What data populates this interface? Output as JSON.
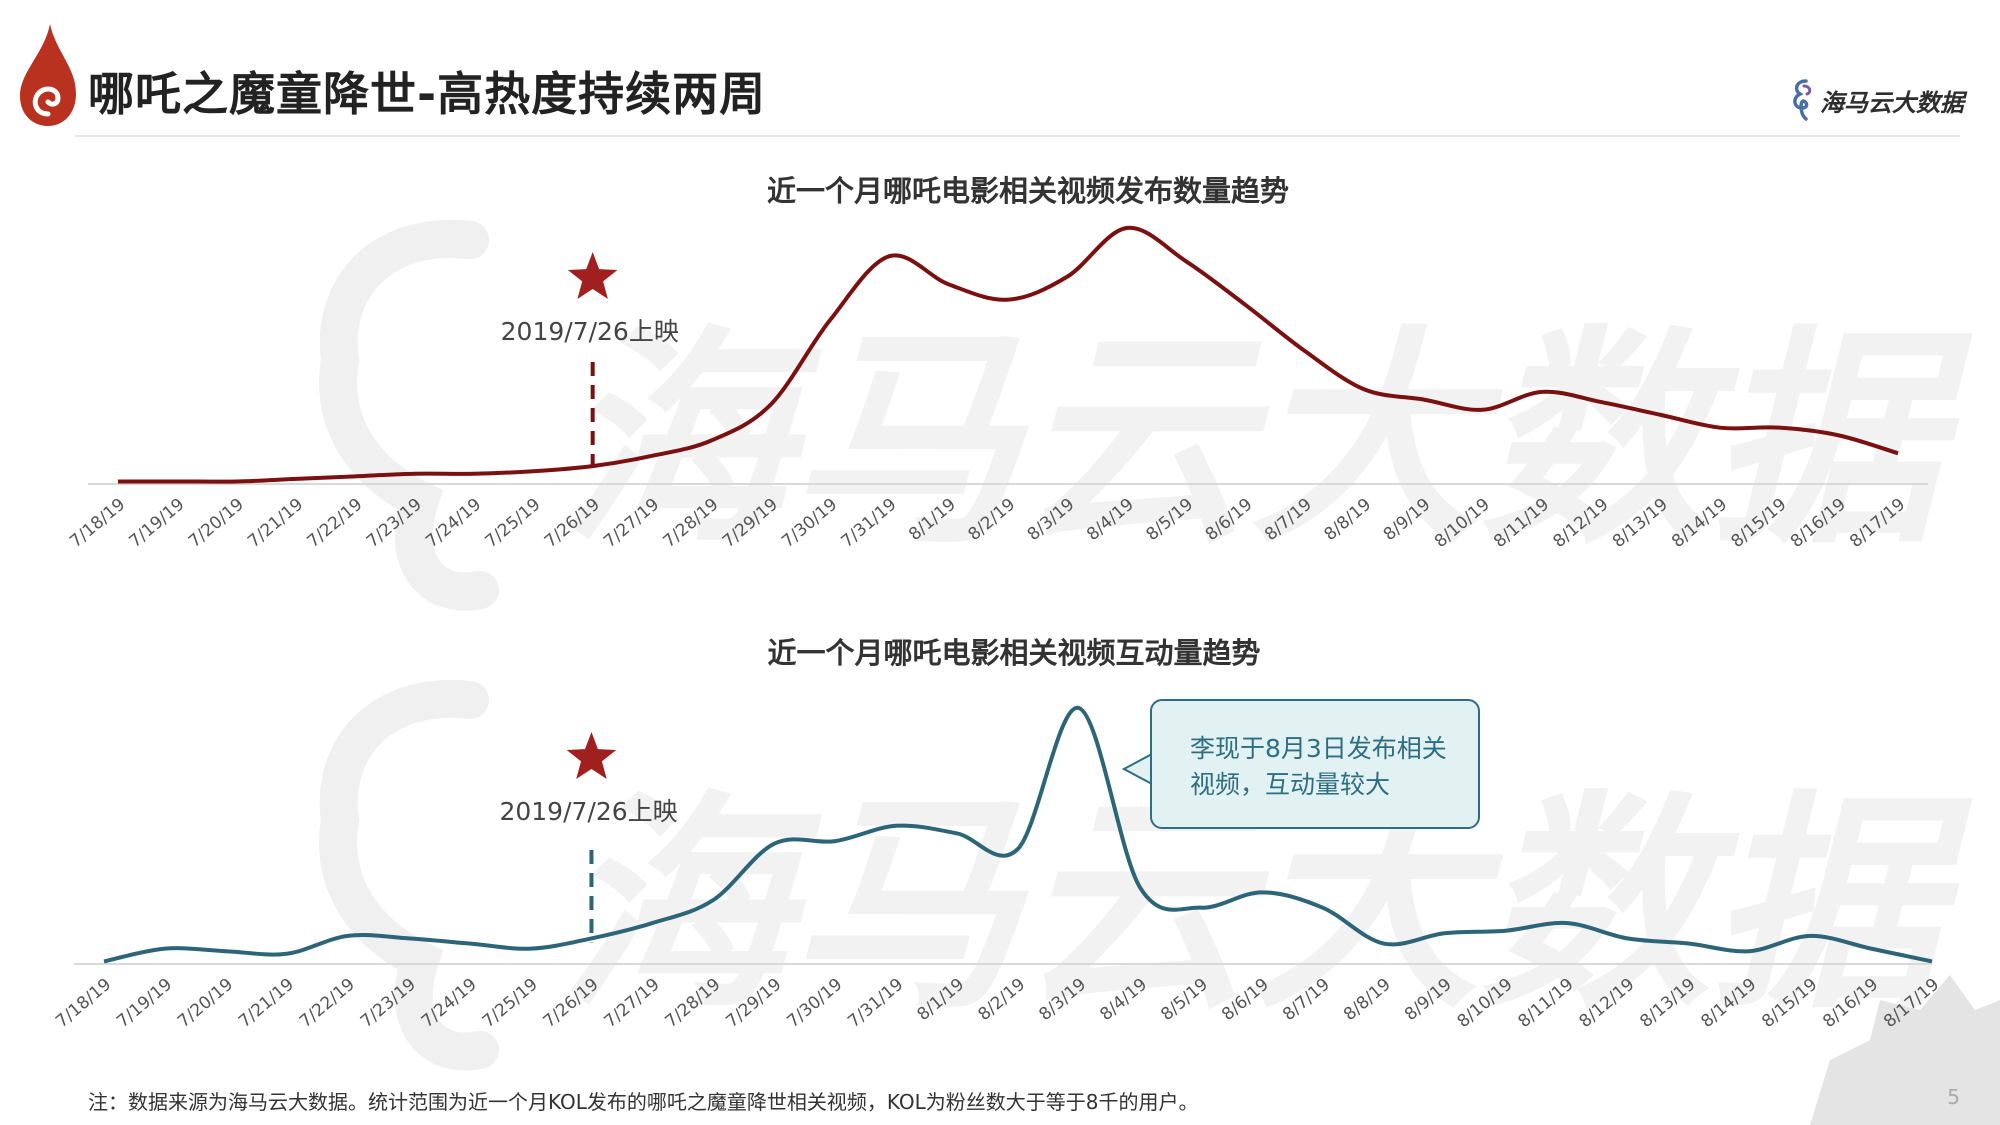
{
  "header": {
    "title": "哪吒之魔童降世-高热度持续两周",
    "brand": "海马云大数据",
    "logo_icon": "flame-swirl-icon",
    "accent_color": "#b8321f"
  },
  "watermark": "海马云大数据",
  "chart_data": [
    {
      "type": "line",
      "title": "近一个月哪吒电影相关视频发布数量趋势",
      "categories": [
        "7/18/19",
        "7/19/19",
        "7/20/19",
        "7/21/19",
        "7/22/19",
        "7/23/19",
        "7/24/19",
        "7/25/19",
        "7/26/19",
        "7/27/19",
        "7/28/19",
        "7/29/19",
        "7/30/19",
        "7/31/19",
        "8/1/19",
        "8/2/19",
        "8/3/19",
        "8/4/19",
        "8/5/19",
        "8/6/19",
        "8/7/19",
        "8/8/19",
        "8/9/19",
        "8/10/19",
        "8/11/19",
        "8/12/19",
        "8/13/19",
        "8/14/19",
        "8/15/19",
        "8/16/19",
        "8/17/19"
      ],
      "series": [
        {
          "color": "#7a1010",
          "values": [
            1,
            1,
            1,
            2,
            3,
            4,
            4,
            5,
            7,
            11,
            17,
            31,
            64,
            89,
            78,
            72,
            81,
            100,
            87,
            70,
            52,
            37,
            33,
            29,
            36,
            32,
            27,
            22,
            22,
            19,
            12
          ]
        }
      ],
      "ylim": [
        0,
        100
      ],
      "grid": false,
      "annotation": {
        "x": "7/26/19",
        "label": "2019/7/26上映",
        "marker": "star"
      }
    },
    {
      "type": "line",
      "title": "近一个月哪吒电影相关视频互动量趋势",
      "categories": [
        "7/18/19",
        "7/19/19",
        "7/20/19",
        "7/21/19",
        "7/22/19",
        "7/23/19",
        "7/24/19",
        "7/25/19",
        "7/26/19",
        "7/27/19",
        "7/28/19",
        "7/29/19",
        "7/30/19",
        "7/31/19",
        "8/1/19",
        "8/2/19",
        "8/3/19",
        "8/4/19",
        "8/5/19",
        "8/6/19",
        "8/7/19",
        "8/8/19",
        "8/9/19",
        "8/10/19",
        "8/11/19",
        "8/12/19",
        "8/13/19",
        "8/14/19",
        "8/15/19",
        "8/16/19",
        "8/17/19"
      ],
      "series": [
        {
          "color": "#2c6478",
          "values": [
            1,
            6,
            5,
            4,
            11,
            10,
            8,
            6,
            10,
            16,
            25,
            47,
            48,
            54,
            51,
            45,
            100,
            30,
            22,
            28,
            22,
            8,
            12,
            13,
            16,
            10,
            8,
            5,
            11,
            6,
            1
          ]
        }
      ],
      "ylim": [
        0,
        100
      ],
      "grid": false,
      "annotation": {
        "x": "7/26/19",
        "label": "2019/7/26上映",
        "marker": "star"
      },
      "callout": {
        "x": "8/3/19",
        "text_line1": "李现于8月3日发布相关",
        "text_line2": "视频，互动量较大"
      }
    }
  ],
  "footnote": "注：数据来源为海马云大数据。统计范围为近一个月KOL发布的哪吒之魔童降世相关视频，KOL为粉丝数大于等于8千的用户。",
  "page_number": "5"
}
